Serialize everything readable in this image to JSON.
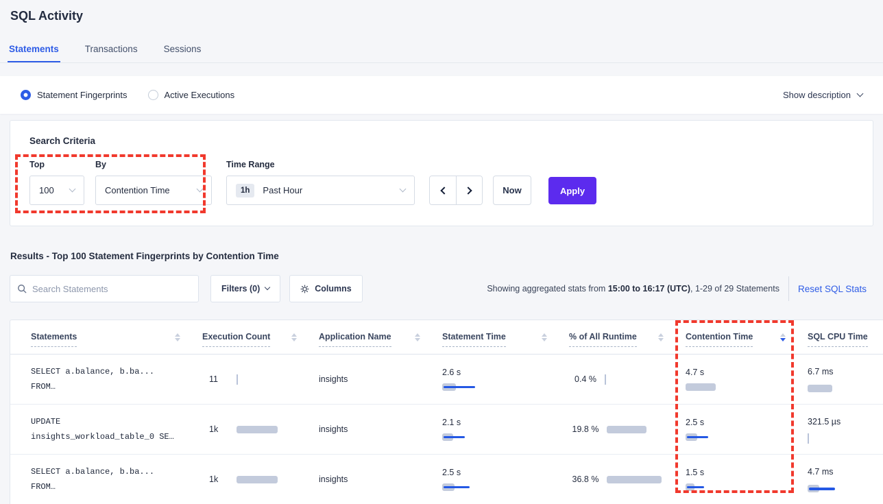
{
  "colors": {
    "accent_blue": "#2e5ce6",
    "apply_purple": "#5c2bee",
    "bar_gray": "#c3cbdc",
    "bar_blue": "#2458e4",
    "annotation_red": "#f1392d"
  },
  "header": {
    "title": "SQL Activity",
    "tabs": [
      "Statements",
      "Transactions",
      "Sessions"
    ],
    "active_tab": "Statements"
  },
  "view_toggle": {
    "options": [
      {
        "label": "Statement Fingerprints",
        "selected": true
      },
      {
        "label": "Active Executions",
        "selected": false
      }
    ],
    "show_description_label": "Show description"
  },
  "search_criteria": {
    "title": "Search Criteria",
    "top_label": "Top",
    "top_value": "100",
    "by_label": "By",
    "by_value": "Contention Time",
    "time_range_label": "Time Range",
    "time_badge": "1h",
    "time_value": "Past Hour",
    "now_label": "Now",
    "apply_label": "Apply"
  },
  "results": {
    "heading": "Results - Top 100 Statement Fingerprints by Contention Time",
    "search_placeholder": "Search Statements",
    "filters_label": "Filters (0)",
    "columns_label": "Columns",
    "showing_prefix": "Showing aggregated stats from ",
    "showing_range": "15:00 to 16:17 (UTC)",
    "showing_suffix": ", 1-29 of 29 Statements",
    "reset_label": "Reset SQL Stats"
  },
  "table": {
    "headers": [
      "Statements",
      "Execution Count",
      "Application Name",
      "Statement Time",
      "% of All Runtime",
      "Contention Time",
      "SQL CPU Time"
    ],
    "sorted_column": "Contention Time",
    "sort_direction": "desc",
    "rows": [
      {
        "statement_line1": "SELECT a.balance, b.ba...",
        "statement_line2": "FROM…",
        "execution_count": {
          "value": "11",
          "gray": 0,
          "blue": 0,
          "tick": 2
        },
        "application": "insights",
        "statement_time": {
          "value": "2.6 s",
          "gray": 20,
          "blue": 46,
          "tick": 0
        },
        "runtime_pct": {
          "value": "0.4 %",
          "gray": 0,
          "blue": 0,
          "tick": 2
        },
        "contention_time": {
          "value": "4.7 s",
          "gray": 44,
          "blue": 0,
          "tick": 0
        },
        "sql_cpu_time": {
          "value": "6.7 ms",
          "gray": 36,
          "blue": 0,
          "tick": 0
        }
      },
      {
        "statement_line1": "UPDATE",
        "statement_line2": "insights_workload_table_0 SE…",
        "execution_count": {
          "value": "1k",
          "gray": 60,
          "blue": 0,
          "tick": 0
        },
        "application": "insights",
        "statement_time": {
          "value": "2.1 s",
          "gray": 16,
          "blue": 31,
          "tick": 0
        },
        "runtime_pct": {
          "value": "19.8 %",
          "gray": 58,
          "blue": 0,
          "tick": 0
        },
        "contention_time": {
          "value": "2.5 s",
          "gray": 17,
          "blue": 31,
          "tick": 0
        },
        "sql_cpu_time": {
          "value": "321.5 µs",
          "gray": 0,
          "blue": 0,
          "tick": 2
        }
      },
      {
        "statement_line1": "SELECT a.balance, b.ba...",
        "statement_line2": "FROM…",
        "execution_count": {
          "value": "1k",
          "gray": 60,
          "blue": 0,
          "tick": 0
        },
        "application": "insights",
        "statement_time": {
          "value": "2.5 s",
          "gray": 18,
          "blue": 38,
          "tick": 0
        },
        "runtime_pct": {
          "value": "36.8 %",
          "gray": 80,
          "blue": 0,
          "tick": 0
        },
        "contention_time": {
          "value": "1.5 s",
          "gray": 13,
          "blue": 25,
          "tick": 0
        },
        "sql_cpu_time": {
          "value": "4.7 ms",
          "gray": 17,
          "blue": 38,
          "tick": 0
        }
      }
    ]
  }
}
